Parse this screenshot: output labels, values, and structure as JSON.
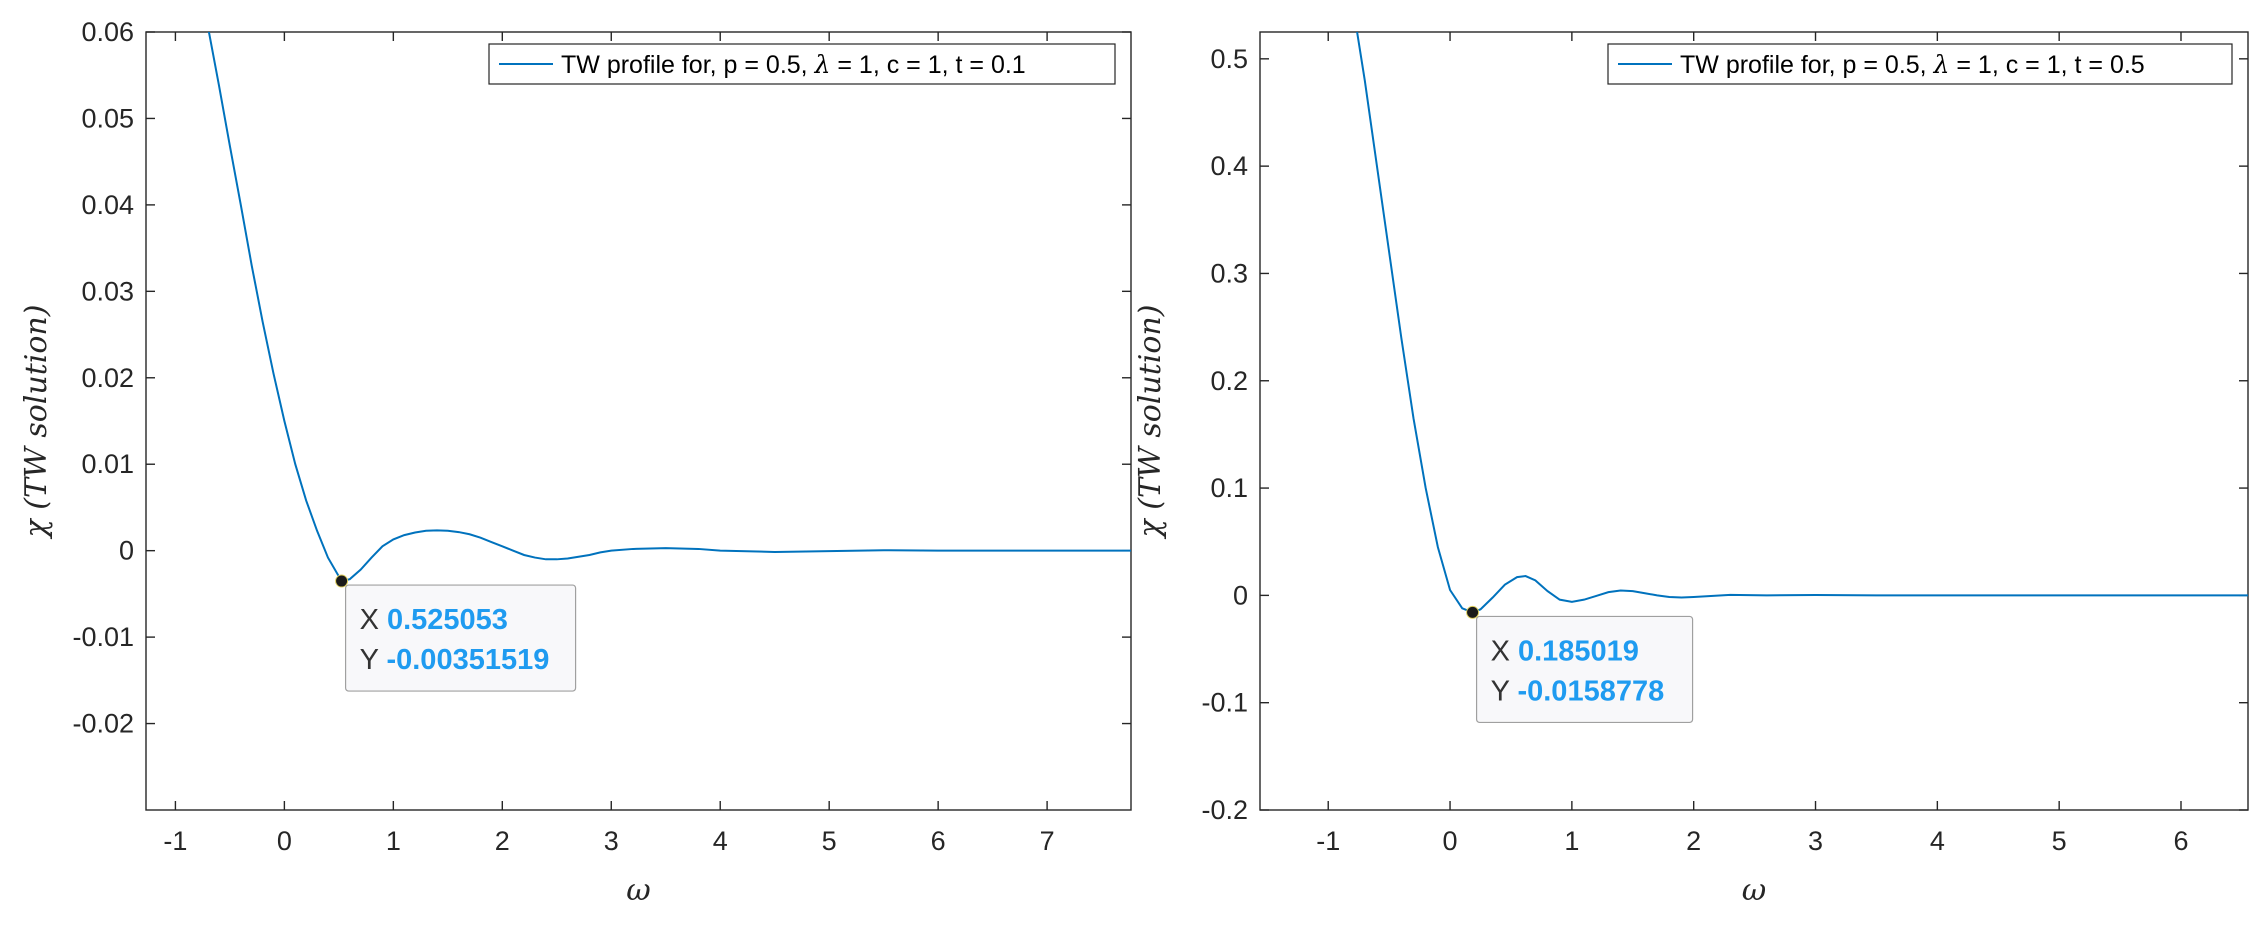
{
  "chart_data": [
    {
      "type": "line",
      "xlabel": "ω",
      "ylabel": "χ   (TW solution)",
      "xlim": [
        -1.27,
        7.77
      ],
      "ylim": [
        -0.03,
        0.06
      ],
      "x_ticks": [
        -1,
        0,
        1,
        2,
        3,
        4,
        5,
        6,
        7
      ],
      "y_ticks": [
        -0.02,
        -0.01,
        0,
        0.01,
        0.02,
        0.03,
        0.04,
        0.05,
        0.06
      ],
      "x_tick_labels": [
        "-1",
        "0",
        "1",
        "2",
        "3",
        "4",
        "5",
        "6",
        "7"
      ],
      "y_tick_labels": [
        "-0.02",
        "-0.01",
        "0",
        "0.01",
        "0.02",
        "0.03",
        "0.04",
        "0.05",
        "0.06"
      ],
      "grid": false,
      "legend_position": "top-right",
      "line_color": "#0072bd",
      "series": [
        {
          "name": "TW profile for, p = 0.5, λ = 1, c = 1, t = 0.1",
          "legend_parts": {
            "a": "TW profile for, p = 0.5, ",
            "sym": "λ",
            "b": " = 1, c = 1, t = 0.1"
          },
          "x": [
            -0.7,
            -0.6,
            -0.5,
            -0.4,
            -0.3,
            -0.2,
            -0.1,
            0.0,
            0.1,
            0.2,
            0.3,
            0.4,
            0.525,
            0.6,
            0.7,
            0.8,
            0.9,
            1.0,
            1.1,
            1.2,
            1.3,
            1.4,
            1.5,
            1.6,
            1.7,
            1.8,
            1.9,
            2.0,
            2.1,
            2.2,
            2.3,
            2.4,
            2.5,
            2.6,
            2.7,
            2.8,
            2.9,
            3.0,
            3.2,
            3.5,
            3.8,
            4.0,
            4.5,
            5.0,
            5.5,
            6.0,
            6.5,
            7.0,
            7.5,
            7.77
          ],
          "y": [
            0.0605,
            0.0538,
            0.0468,
            0.04,
            0.033,
            0.0265,
            0.0205,
            0.015,
            0.01,
            0.0058,
            0.0023,
            -0.0008,
            -0.00352,
            -0.0033,
            -0.0022,
            -0.0008,
            0.0005,
            0.0013,
            0.0018,
            0.0021,
            0.0023,
            0.00235,
            0.0023,
            0.00215,
            0.0019,
            0.0015,
            0.001,
            0.0005,
            0.0,
            -0.0005,
            -0.0008,
            -0.001,
            -0.001,
            -0.0009,
            -0.0007,
            -0.0005,
            -0.0002,
            0.0,
            0.0002,
            0.0003,
            0.0002,
            0.0,
            -0.00015,
            -5e-05,
            5e-05,
            0.0,
            0.0,
            0.0,
            0.0,
            0.0
          ]
        }
      ],
      "datatip": {
        "x": 0.525053,
        "y": -0.00351519,
        "x_label": "X",
        "y_label": "Y",
        "x_text": "0.525053",
        "y_text": "-0.00351519"
      }
    },
    {
      "type": "line",
      "xlabel": "ω",
      "ylabel": "χ   (TW solution)",
      "xlim": [
        -1.56,
        6.55
      ],
      "ylim": [
        -0.2,
        0.525
      ],
      "x_ticks": [
        -1,
        0,
        1,
        2,
        3,
        4,
        5,
        6
      ],
      "y_ticks": [
        -0.2,
        -0.1,
        0,
        0.1,
        0.2,
        0.3,
        0.4,
        0.5
      ],
      "x_tick_labels": [
        "-1",
        "0",
        "1",
        "2",
        "3",
        "4",
        "5",
        "6"
      ],
      "y_tick_labels": [
        "-0.2",
        "-0.1",
        "0",
        "0.1",
        "0.2",
        "0.3",
        "0.4",
        "0.5"
      ],
      "grid": false,
      "legend_position": "top-right",
      "line_color": "#0072bd",
      "series": [
        {
          "name": "TW profile for, p = 0.5, λ = 1, c = 1, t = 0.5",
          "legend_parts": {
            "a": "TW profile for, p = 0.5, ",
            "sym": "λ",
            "b": " = 1, c = 1, t = 0.5"
          },
          "x": [
            -0.77,
            -0.7,
            -0.6,
            -0.5,
            -0.4,
            -0.3,
            -0.2,
            -0.1,
            0.0,
            0.1,
            0.185,
            0.25,
            0.35,
            0.45,
            0.55,
            0.62,
            0.7,
            0.8,
            0.9,
            1.0,
            1.1,
            1.2,
            1.3,
            1.4,
            1.5,
            1.6,
            1.7,
            1.8,
            1.9,
            2.0,
            2.3,
            2.6,
            3.0,
            3.5,
            4.0,
            5.0,
            6.0,
            6.55
          ],
          "y": [
            0.53,
            0.48,
            0.4,
            0.32,
            0.24,
            0.165,
            0.1,
            0.045,
            0.005,
            -0.012,
            -0.0159,
            -0.013,
            -0.002,
            0.01,
            0.017,
            0.018,
            0.014,
            0.004,
            -0.004,
            -0.006,
            -0.004,
            -0.0005,
            0.003,
            0.0045,
            0.004,
            0.002,
            0.0,
            -0.0015,
            -0.002,
            -0.0015,
            0.0005,
            0.0,
            0.0003,
            0.0,
            0.0,
            0.0,
            0.0,
            0.0
          ]
        }
      ],
      "datatip": {
        "x": 0.185019,
        "y": -0.0158778,
        "x_label": "X",
        "y_label": "Y",
        "x_text": "0.185019",
        "y_text": "-0.0158778"
      }
    }
  ]
}
